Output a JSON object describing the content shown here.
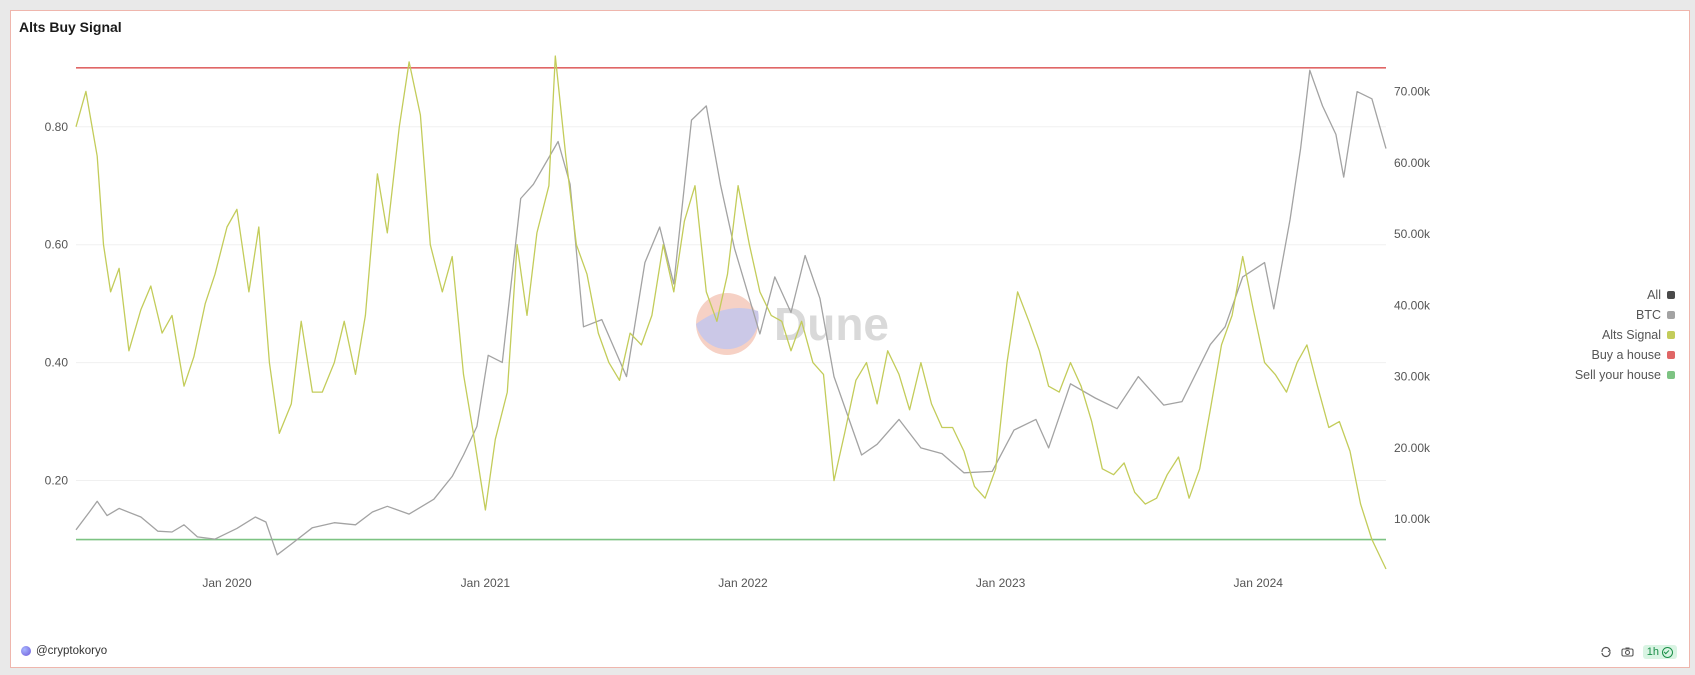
{
  "title": "Alts Buy Signal",
  "watermark": "Dune",
  "author": "@cryptokoryo",
  "refresh_badge": "1h",
  "icons": [
    "refresh-icon",
    "camera-icon",
    "check-circle-icon"
  ],
  "legend": [
    {
      "label": "All",
      "color": "#4a4a4a"
    },
    {
      "label": "BTC",
      "color": "#a3a3a3"
    },
    {
      "label": "Alts Signal",
      "color": "#c3cc5a"
    },
    {
      "label": "Buy a house",
      "color": "#e06666"
    },
    {
      "label": "Sell your house",
      "color": "#7dc383"
    }
  ],
  "chart_data": {
    "type": "line",
    "title": "Alts Buy Signal",
    "x_ticks": [
      "Jan 2020",
      "Jan 2021",
      "Jan 2022",
      "Jan 2023",
      "Jan 2024"
    ],
    "x_range": [
      "2019-06-01",
      "2024-06-30"
    ],
    "y_left": {
      "ticks": [
        "0.20",
        "0.40",
        "0.60",
        "0.80"
      ],
      "range": [
        0.05,
        0.92
      ]
    },
    "y_right": {
      "ticks": [
        "10.00k",
        "20.00k",
        "30.00k",
        "40.00k",
        "50.00k",
        "60.00k",
        "70.00k"
      ],
      "range": [
        3000,
        75000
      ]
    },
    "grid": true,
    "legend_position": "right",
    "series": [
      {
        "name": "Alts Signal",
        "axis": "left",
        "color": "#c3cc5a",
        "points": [
          [
            "2019-06-01",
            0.8
          ],
          [
            "2019-06-15",
            0.86
          ],
          [
            "2019-07-01",
            0.75
          ],
          [
            "2019-07-10",
            0.6
          ],
          [
            "2019-07-20",
            0.52
          ],
          [
            "2019-08-01",
            0.56
          ],
          [
            "2019-08-15",
            0.42
          ],
          [
            "2019-09-01",
            0.49
          ],
          [
            "2019-09-15",
            0.53
          ],
          [
            "2019-10-01",
            0.45
          ],
          [
            "2019-10-15",
            0.48
          ],
          [
            "2019-11-01",
            0.36
          ],
          [
            "2019-11-15",
            0.41
          ],
          [
            "2019-12-01",
            0.5
          ],
          [
            "2019-12-15",
            0.55
          ],
          [
            "2020-01-01",
            0.63
          ],
          [
            "2020-01-15",
            0.66
          ],
          [
            "2020-02-01",
            0.52
          ],
          [
            "2020-02-15",
            0.63
          ],
          [
            "2020-03-01",
            0.4
          ],
          [
            "2020-03-15",
            0.28
          ],
          [
            "2020-04-01",
            0.33
          ],
          [
            "2020-04-15",
            0.47
          ],
          [
            "2020-05-01",
            0.35
          ],
          [
            "2020-05-15",
            0.35
          ],
          [
            "2020-06-01",
            0.4
          ],
          [
            "2020-06-15",
            0.47
          ],
          [
            "2020-07-01",
            0.38
          ],
          [
            "2020-07-15",
            0.48
          ],
          [
            "2020-08-01",
            0.72
          ],
          [
            "2020-08-15",
            0.62
          ],
          [
            "2020-09-01",
            0.8
          ],
          [
            "2020-09-15",
            0.91
          ],
          [
            "2020-10-01",
            0.82
          ],
          [
            "2020-10-15",
            0.6
          ],
          [
            "2020-11-01",
            0.52
          ],
          [
            "2020-11-15",
            0.58
          ],
          [
            "2020-12-01",
            0.38
          ],
          [
            "2020-12-15",
            0.28
          ],
          [
            "2021-01-01",
            0.15
          ],
          [
            "2021-01-15",
            0.27
          ],
          [
            "2021-02-01",
            0.35
          ],
          [
            "2021-02-15",
            0.6
          ],
          [
            "2021-03-01",
            0.48
          ],
          [
            "2021-03-15",
            0.62
          ],
          [
            "2021-04-01",
            0.7
          ],
          [
            "2021-04-10",
            0.92
          ],
          [
            "2021-04-25",
            0.75
          ],
          [
            "2021-05-10",
            0.6
          ],
          [
            "2021-05-25",
            0.55
          ],
          [
            "2021-06-10",
            0.45
          ],
          [
            "2021-06-25",
            0.4
          ],
          [
            "2021-07-10",
            0.37
          ],
          [
            "2021-07-25",
            0.45
          ],
          [
            "2021-08-10",
            0.43
          ],
          [
            "2021-08-25",
            0.48
          ],
          [
            "2021-09-10",
            0.6
          ],
          [
            "2021-09-25",
            0.52
          ],
          [
            "2021-10-10",
            0.64
          ],
          [
            "2021-10-25",
            0.7
          ],
          [
            "2021-11-10",
            0.52
          ],
          [
            "2021-11-25",
            0.47
          ],
          [
            "2021-12-10",
            0.55
          ],
          [
            "2021-12-25",
            0.7
          ],
          [
            "2022-01-10",
            0.6
          ],
          [
            "2022-01-25",
            0.52
          ],
          [
            "2022-02-10",
            0.48
          ],
          [
            "2022-02-25",
            0.47
          ],
          [
            "2022-03-10",
            0.42
          ],
          [
            "2022-03-25",
            0.47
          ],
          [
            "2022-04-10",
            0.4
          ],
          [
            "2022-04-25",
            0.38
          ],
          [
            "2022-05-10",
            0.2
          ],
          [
            "2022-05-25",
            0.28
          ],
          [
            "2022-06-10",
            0.37
          ],
          [
            "2022-06-25",
            0.4
          ],
          [
            "2022-07-10",
            0.33
          ],
          [
            "2022-07-25",
            0.42
          ],
          [
            "2022-08-10",
            0.38
          ],
          [
            "2022-08-25",
            0.32
          ],
          [
            "2022-09-10",
            0.4
          ],
          [
            "2022-09-25",
            0.33
          ],
          [
            "2022-10-10",
            0.29
          ],
          [
            "2022-10-25",
            0.29
          ],
          [
            "2022-11-10",
            0.25
          ],
          [
            "2022-11-25",
            0.19
          ],
          [
            "2022-12-10",
            0.17
          ],
          [
            "2022-12-25",
            0.22
          ],
          [
            "2023-01-10",
            0.4
          ],
          [
            "2023-01-25",
            0.52
          ],
          [
            "2023-02-10",
            0.47
          ],
          [
            "2023-02-25",
            0.42
          ],
          [
            "2023-03-10",
            0.36
          ],
          [
            "2023-03-25",
            0.35
          ],
          [
            "2023-04-10",
            0.4
          ],
          [
            "2023-04-25",
            0.36
          ],
          [
            "2023-05-10",
            0.3
          ],
          [
            "2023-05-25",
            0.22
          ],
          [
            "2023-06-10",
            0.21
          ],
          [
            "2023-06-25",
            0.23
          ],
          [
            "2023-07-10",
            0.18
          ],
          [
            "2023-07-25",
            0.16
          ],
          [
            "2023-08-10",
            0.17
          ],
          [
            "2023-08-25",
            0.21
          ],
          [
            "2023-09-10",
            0.24
          ],
          [
            "2023-09-25",
            0.17
          ],
          [
            "2023-10-10",
            0.22
          ],
          [
            "2023-10-25",
            0.32
          ],
          [
            "2023-11-10",
            0.43
          ],
          [
            "2023-11-25",
            0.48
          ],
          [
            "2023-12-10",
            0.58
          ],
          [
            "2023-12-25",
            0.49
          ],
          [
            "2024-01-10",
            0.4
          ],
          [
            "2024-01-25",
            0.38
          ],
          [
            "2024-02-10",
            0.35
          ],
          [
            "2024-02-25",
            0.4
          ],
          [
            "2024-03-10",
            0.43
          ],
          [
            "2024-03-25",
            0.36
          ],
          [
            "2024-04-10",
            0.29
          ],
          [
            "2024-04-25",
            0.3
          ],
          [
            "2024-05-10",
            0.25
          ],
          [
            "2024-05-25",
            0.16
          ],
          [
            "2024-06-10",
            0.1
          ],
          [
            "2024-06-30",
            0.05
          ]
        ]
      },
      {
        "name": "BTC",
        "axis": "right",
        "color": "#a3a3a3",
        "points": [
          [
            "2019-06-01",
            8500
          ],
          [
            "2019-06-20",
            11000
          ],
          [
            "2019-07-01",
            12500
          ],
          [
            "2019-07-15",
            10500
          ],
          [
            "2019-08-01",
            11500
          ],
          [
            "2019-09-01",
            10300
          ],
          [
            "2019-09-25",
            8300
          ],
          [
            "2019-10-15",
            8200
          ],
          [
            "2019-11-01",
            9200
          ],
          [
            "2019-11-20",
            7500
          ],
          [
            "2019-12-15",
            7200
          ],
          [
            "2020-01-15",
            8700
          ],
          [
            "2020-02-10",
            10300
          ],
          [
            "2020-02-25",
            9600
          ],
          [
            "2020-03-12",
            5000
          ],
          [
            "2020-04-01",
            6500
          ],
          [
            "2020-05-01",
            8800
          ],
          [
            "2020-06-01",
            9500
          ],
          [
            "2020-07-01",
            9200
          ],
          [
            "2020-07-25",
            11000
          ],
          [
            "2020-08-15",
            11800
          ],
          [
            "2020-09-15",
            10700
          ],
          [
            "2020-10-20",
            12800
          ],
          [
            "2020-11-15",
            16000
          ],
          [
            "2020-12-01",
            19000
          ],
          [
            "2020-12-20",
            23000
          ],
          [
            "2021-01-05",
            33000
          ],
          [
            "2021-01-25",
            32000
          ],
          [
            "2021-02-20",
            55000
          ],
          [
            "2021-03-10",
            57000
          ],
          [
            "2021-04-14",
            63000
          ],
          [
            "2021-05-01",
            57000
          ],
          [
            "2021-05-20",
            37000
          ],
          [
            "2021-06-15",
            38000
          ],
          [
            "2021-07-20",
            30000
          ],
          [
            "2021-08-15",
            46000
          ],
          [
            "2021-09-05",
            51000
          ],
          [
            "2021-09-25",
            43000
          ],
          [
            "2021-10-20",
            66000
          ],
          [
            "2021-11-10",
            68000
          ],
          [
            "2021-11-30",
            57000
          ],
          [
            "2021-12-20",
            48000
          ],
          [
            "2022-01-25",
            36000
          ],
          [
            "2022-02-15",
            44000
          ],
          [
            "2022-03-10",
            39000
          ],
          [
            "2022-03-30",
            47000
          ],
          [
            "2022-04-20",
            41000
          ],
          [
            "2022-05-10",
            30000
          ],
          [
            "2022-06-18",
            19000
          ],
          [
            "2022-07-10",
            20500
          ],
          [
            "2022-08-10",
            24000
          ],
          [
            "2022-09-10",
            20000
          ],
          [
            "2022-10-10",
            19200
          ],
          [
            "2022-11-10",
            16500
          ],
          [
            "2022-12-20",
            16700
          ],
          [
            "2023-01-20",
            22500
          ],
          [
            "2023-02-20",
            24000
          ],
          [
            "2023-03-10",
            20000
          ],
          [
            "2023-04-10",
            29000
          ],
          [
            "2023-05-15",
            27000
          ],
          [
            "2023-06-15",
            25500
          ],
          [
            "2023-07-15",
            30000
          ],
          [
            "2023-08-20",
            26000
          ],
          [
            "2023-09-15",
            26500
          ],
          [
            "2023-10-25",
            34500
          ],
          [
            "2023-11-15",
            37000
          ],
          [
            "2023-12-10",
            44000
          ],
          [
            "2024-01-10",
            46000
          ],
          [
            "2024-01-23",
            39500
          ],
          [
            "2024-02-15",
            52000
          ],
          [
            "2024-03-01",
            62000
          ],
          [
            "2024-03-14",
            73000
          ],
          [
            "2024-04-01",
            68000
          ],
          [
            "2024-04-20",
            64000
          ],
          [
            "2024-05-01",
            58000
          ],
          [
            "2024-05-20",
            70000
          ],
          [
            "2024-06-10",
            69000
          ],
          [
            "2024-06-30",
            62000
          ]
        ]
      },
      {
        "name": "Buy a house",
        "axis": "left",
        "color": "#e06666",
        "value": 0.9
      },
      {
        "name": "Sell your house",
        "axis": "left",
        "color": "#7dc383",
        "value": 0.1
      }
    ]
  }
}
